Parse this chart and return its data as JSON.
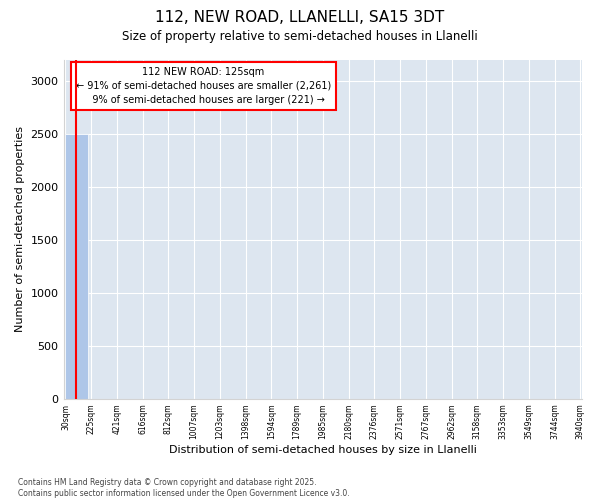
{
  "title": "112, NEW ROAD, LLANELLI, SA15 3DT",
  "subtitle": "Size of property relative to semi-detached houses in Llanelli",
  "xlabel": "Distribution of semi-detached houses by size in Llanelli",
  "ylabel": "Number of semi-detached properties",
  "bin_labels": [
    "30sqm",
    "225sqm",
    "421sqm",
    "616sqm",
    "812sqm",
    "1007sqm",
    "1203sqm",
    "1398sqm",
    "1594sqm",
    "1789sqm",
    "1985sqm",
    "2180sqm",
    "2376sqm",
    "2571sqm",
    "2767sqm",
    "2962sqm",
    "3158sqm",
    "3353sqm",
    "3549sqm",
    "3744sqm",
    "3940sqm"
  ],
  "bar_heights": [
    2500,
    0,
    0,
    0,
    0,
    0,
    0,
    0,
    0,
    0,
    0,
    0,
    0,
    0,
    0,
    0,
    0,
    0,
    0,
    0
  ],
  "bar_color": "#aec6e8",
  "property_label": "112 NEW ROAD: 125sqm",
  "pct_smaller": 91,
  "pct_larger": 9,
  "count_smaller": 2261,
  "count_larger": 221,
  "ylim": [
    0,
    3200
  ],
  "yticks": [
    0,
    500,
    1000,
    1500,
    2000,
    2500,
    3000
  ],
  "background_color": "#dde6f0",
  "footer_line1": "Contains HM Land Registry data © Crown copyright and database right 2025.",
  "footer_line2": "Contains public sector information licensed under the Open Government Licence v3.0."
}
